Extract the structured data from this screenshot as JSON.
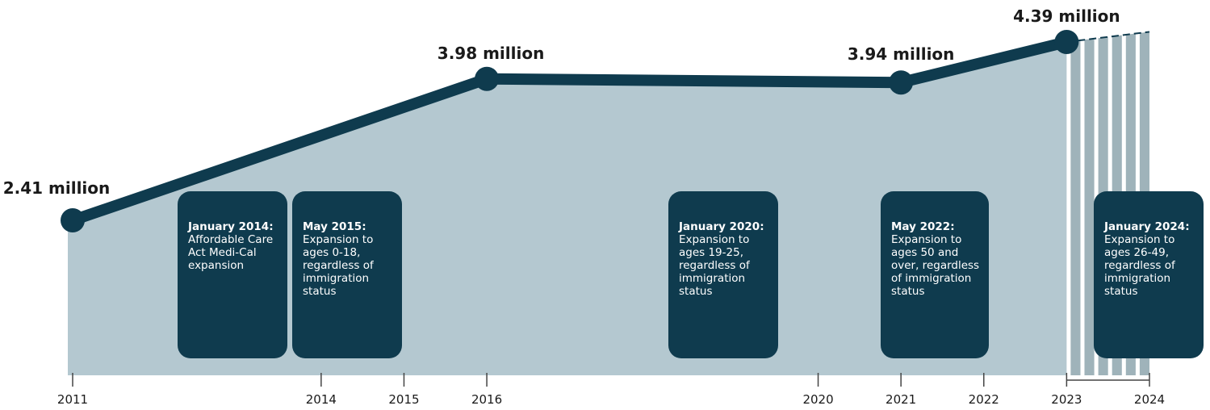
{
  "chart_data": {
    "type": "line",
    "x": [
      2011,
      2016,
      2021,
      2023
    ],
    "values": [
      2.41,
      3.98,
      3.94,
      4.39
    ],
    "value_labels": [
      "2.41 million",
      "3.98 million",
      "3.94 million",
      "4.39 million"
    ],
    "projection": {
      "from": 2023,
      "to": 2024
    },
    "xlim": [
      2011,
      2024
    ],
    "ylim": [
      2.0,
      4.5
    ],
    "x_ticks": [
      {
        "value": 2011,
        "label": "2011"
      },
      {
        "value": 2014,
        "label": "2014"
      },
      {
        "value": 2015,
        "label": "2015"
      },
      {
        "value": 2016,
        "label": "2016"
      },
      {
        "value": 2020,
        "label": "2020"
      },
      {
        "value": 2021,
        "label": "2021"
      },
      {
        "value": 2022,
        "label": "2022"
      },
      {
        "value": 2023,
        "label": "2023"
      },
      {
        "value": 2024,
        "label": "2024"
      }
    ],
    "events": [
      {
        "date": "January 2014:",
        "description": "Affordable Care Act Medi-Cal expansion"
      },
      {
        "date": "May 2015:",
        "description": "Expansion to ages 0-18, regardless of immigration status"
      },
      {
        "date": "January 2020:",
        "description": "Expansion to ages 19-25, regardless of immigration status"
      },
      {
        "date": "May 2022:",
        "description": "Expansion to ages 50 and over, regardless of immigration status"
      },
      {
        "date": "January 2024:",
        "description": "Expansion to ages 26-49, regardless of immigration status"
      }
    ],
    "grid": false,
    "colors": {
      "line": "#0f3b4e",
      "area": "#b4c8d0",
      "projection": "#9fb3ba",
      "box": "#0f3b4e"
    }
  }
}
